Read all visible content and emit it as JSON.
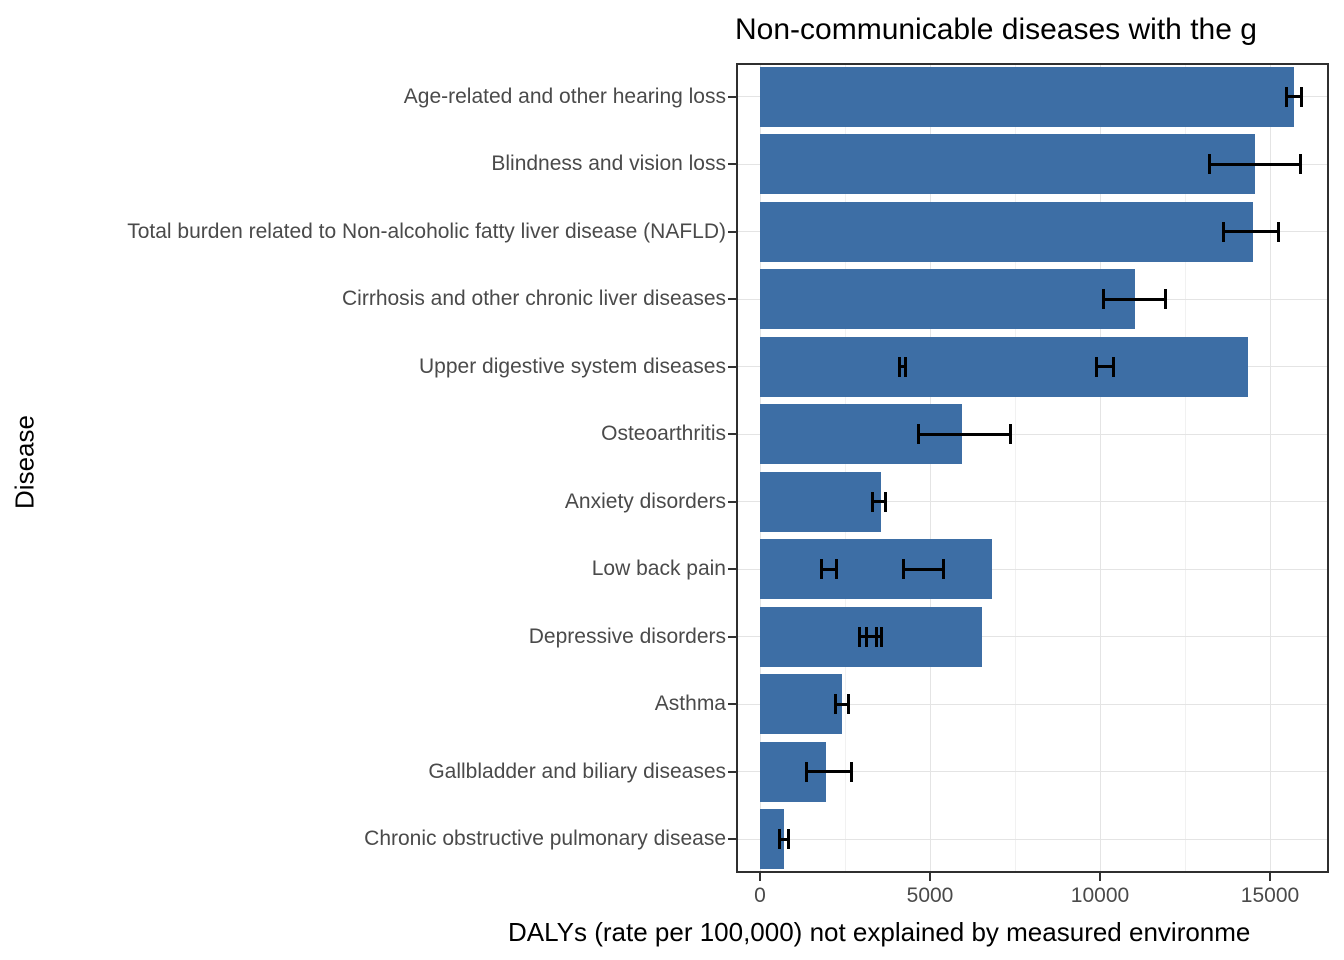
{
  "title": "Non-communicable diseases with the g",
  "chart_data": {
    "type": "bar",
    "orientation": "horizontal",
    "title": "Non-communicable diseases with the g",
    "title_truncated_at_right_edge": true,
    "xlabel": "DALYs (rate per 100,000) not explained by measured environme",
    "xlabel_truncated_at_right_edge": true,
    "ylabel": "Disease",
    "xlim": [
      -700,
      16750
    ],
    "x_ticks": [
      0,
      5000,
      10000,
      15000
    ],
    "x_tick_labels": [
      "0",
      "5000",
      "10000",
      "15000"
    ],
    "x_minor_gridlines": [
      2500,
      7500,
      12500
    ],
    "grid": true,
    "legend": "none",
    "bar_color": "#3d6ea5",
    "error_bar_color": "#000000",
    "categories": [
      "Age-related and other hearing loss",
      "Blindness and vision loss",
      "Total burden related to Non-alcoholic fatty liver disease (NAFLD)",
      "Cirrhosis and other chronic liver diseases",
      "Upper digestive system diseases",
      "Osteoarthritis",
      "Anxiety disorders",
      "Low back pain",
      "Depressive disorders",
      "Asthma",
      "Gallbladder and biliary diseases",
      "Chronic obstructive pulmonary disease"
    ],
    "values": [
      15700,
      14560,
      14500,
      11030,
      14350,
      5940,
      3560,
      6820,
      6530,
      2410,
      1940,
      705
    ],
    "error_bars": [
      [
        [
          15440,
          15970
        ]
      ],
      [
        [
          13180,
          15940
        ]
      ],
      [
        [
          13590,
          15290
        ]
      ],
      [
        [
          10060,
          11970
        ]
      ],
      [
        [
          4060,
          4330
        ],
        [
          9850,
          10440
        ]
      ],
      [
        [
          4620,
          7410
        ]
      ],
      [
        [
          3270,
          3740
        ]
      ],
      [
        [
          1770,
          2300
        ],
        [
          4180,
          5440
        ]
      ],
      [
        [
          2880,
          3470
        ],
        [
          3090,
          3620
        ]
      ],
      [
        [
          2180,
          2650
        ]
      ],
      [
        [
          1330,
          2740
        ]
      ],
      [
        [
          530,
          880
        ]
      ]
    ]
  }
}
